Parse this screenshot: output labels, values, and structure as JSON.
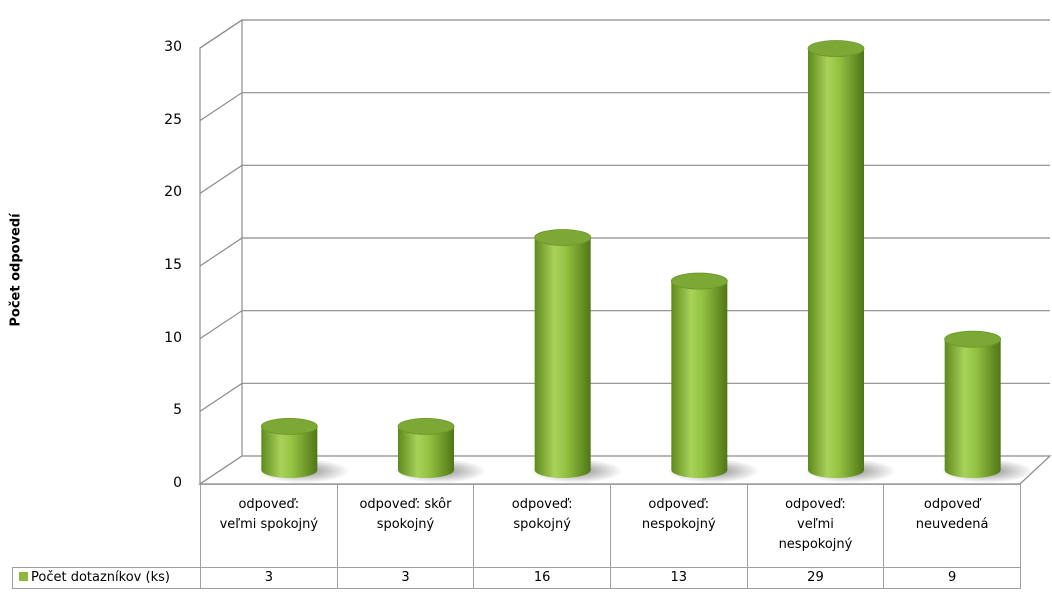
{
  "chart_data": {
    "type": "bar",
    "title": "",
    "xlabel": "",
    "ylabel": "Počet odpovedí",
    "ylim": [
      0,
      30
    ],
    "yticks": [
      0,
      5,
      10,
      15,
      20,
      25,
      30
    ],
    "categories": [
      "odpoveď: veľmi spokojný",
      "odpoveď: skôr spokojný",
      "odpoveď: spokojný",
      "odpoveď: nespokojný",
      "odpoveď: veľmi nespokojný",
      "odpoveď neuvedená"
    ],
    "category_lines": [
      [
        "odpoveď:",
        "veľmi spokojný"
      ],
      [
        "odpoveď: skôr",
        "spokojný"
      ],
      [
        "odpoveď:",
        "spokojný"
      ],
      [
        "odpoveď:",
        "nespokojný"
      ],
      [
        "odpoveď:",
        "veľmi",
        "nespokojný"
      ],
      [
        "odpoveď",
        "neuvedená"
      ]
    ],
    "series": [
      {
        "name": "Počet dotazníkov (ks)",
        "values": [
          3,
          3,
          16,
          13,
          29,
          9
        ],
        "color": "#8db83c"
      }
    ],
    "grid": true,
    "legend": "data-table",
    "style": "3d-cylinder"
  }
}
